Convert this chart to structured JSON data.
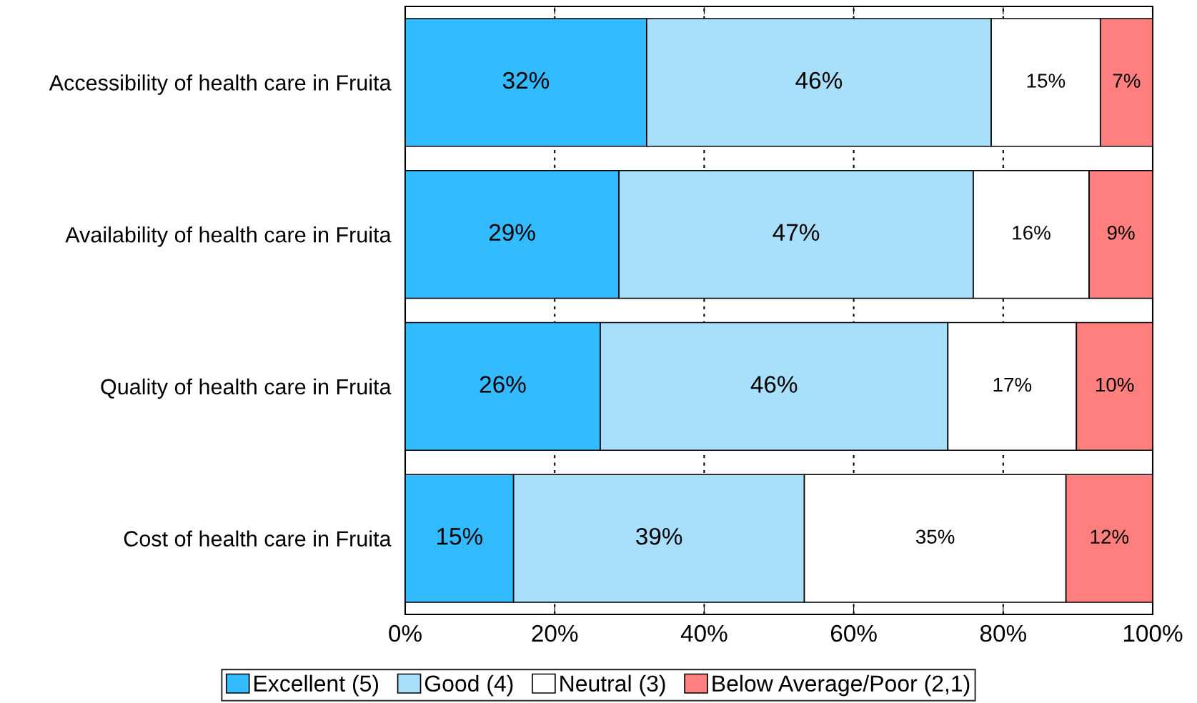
{
  "chart_data": {
    "type": "bar",
    "orientation": "horizontal",
    "stacked": true,
    "categories": [
      "Accessibility of health care in Fruita",
      "Availability of health care in Fruita",
      "Quality of health care in Fruita",
      "Cost of health care in Fruita"
    ],
    "series": [
      {
        "name": "Excellent (5)",
        "color": "#33bbff",
        "values": [
          32.3,
          28.6,
          26.1,
          14.5
        ],
        "value_labels": [
          "32%",
          "29%",
          "26%",
          "15%"
        ]
      },
      {
        "name": "Good (4)",
        "color": "#a8e0fc",
        "values": [
          46.1,
          47.4,
          46.5,
          38.9
        ],
        "value_labels": [
          "46%",
          "47%",
          "46%",
          "39%"
        ]
      },
      {
        "name": "Neutral (3)",
        "color": "#ffffff",
        "values": [
          14.6,
          15.5,
          17.2,
          35.0
        ],
        "value_labels": [
          "15%",
          "16%",
          "17%",
          "35%"
        ]
      },
      {
        "name": "Below Average/Poor (2,1)",
        "color": "#ff7f7f",
        "values": [
          7.0,
          8.5,
          10.2,
          11.6
        ],
        "value_labels": [
          "7%",
          "9%",
          "10%",
          "12%"
        ]
      }
    ],
    "xlim": [
      0,
      100
    ],
    "xticks": [
      {
        "value": 0,
        "label": "0%"
      },
      {
        "value": 20,
        "label": "20%"
      },
      {
        "value": 40,
        "label": "40%"
      },
      {
        "value": 60,
        "label": "60%"
      },
      {
        "value": 80,
        "label": "80%"
      },
      {
        "value": 100,
        "label": "100%"
      }
    ],
    "grid": "x",
    "legend": "bottom"
  }
}
